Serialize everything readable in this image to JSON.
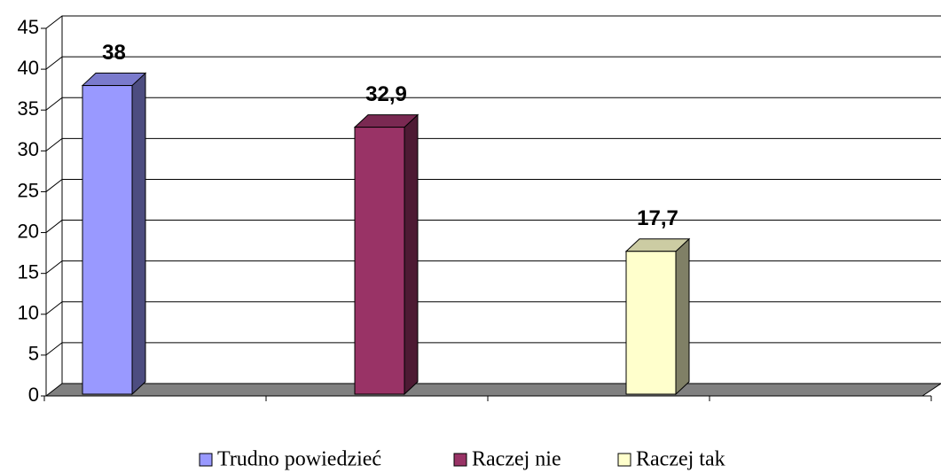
{
  "chart_data": {
    "type": "bar3d",
    "series": [
      {
        "name": "Trudno powiedzieć",
        "color": "#9999ff",
        "values": [
          38
        ],
        "value_labels": [
          "38"
        ]
      },
      {
        "name": "Raczej nie",
        "color": "#993366",
        "values": [
          32.9
        ],
        "value_labels": [
          "32,9"
        ]
      },
      {
        "name": "Raczej tak",
        "color": "#ffffcc",
        "values": [
          17.7
        ],
        "value_labels": [
          "17,7"
        ]
      }
    ],
    "ylim": [
      0,
      45
    ],
    "yticks": [
      0,
      5,
      10,
      15,
      20,
      25,
      30,
      35,
      40,
      45
    ],
    "grid": true,
    "legend": "bottom"
  }
}
